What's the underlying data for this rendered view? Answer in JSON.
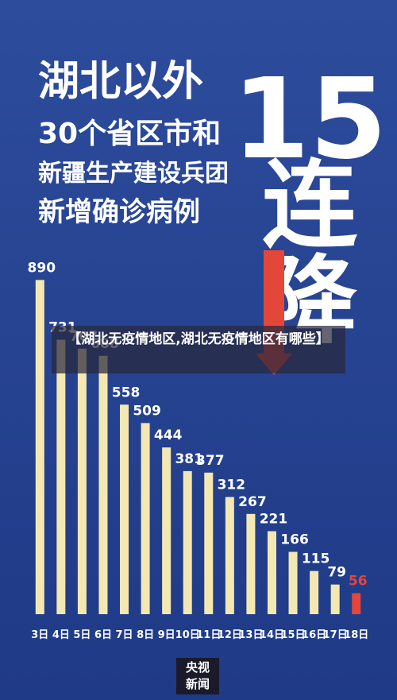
{
  "chart_data": {
    "type": "bar",
    "title_lines": [
      "湖北以外",
      "30个省区市和",
      "新疆生产建设兵团",
      "新增确诊病例"
    ],
    "headline": [
      "15",
      "连",
      "降"
    ],
    "categories": [
      "3日",
      "4日",
      "5日",
      "6日",
      "7日",
      "8日",
      "9日",
      "10日",
      "11日",
      "12日",
      "13日",
      "14日",
      "15日",
      "16日",
      "17日",
      "18日"
    ],
    "values": [
      890,
      731,
      707,
      688,
      558,
      509,
      444,
      381,
      377,
      312,
      267,
      221,
      166,
      115,
      79,
      56
    ],
    "colors": [
      "#f4e8b2",
      "#f4e8b2",
      "#f4e8b2",
      "#f4e8b2",
      "#f4e8b2",
      "#f4e8b2",
      "#f4e8b2",
      "#f4e8b2",
      "#f4e8b2",
      "#f4e8b2",
      "#f4e8b2",
      "#f4e8b2",
      "#f4e8b2",
      "#f4e8b2",
      "#f4e8b2",
      "#e2473a"
    ],
    "ylim": [
      0,
      950
    ]
  },
  "overlay": {
    "text": "【湖北无疫情地区,湖北无疫情地区有哪些】"
  },
  "logo": {
    "line1": "央视",
    "line2": "新闻"
  }
}
